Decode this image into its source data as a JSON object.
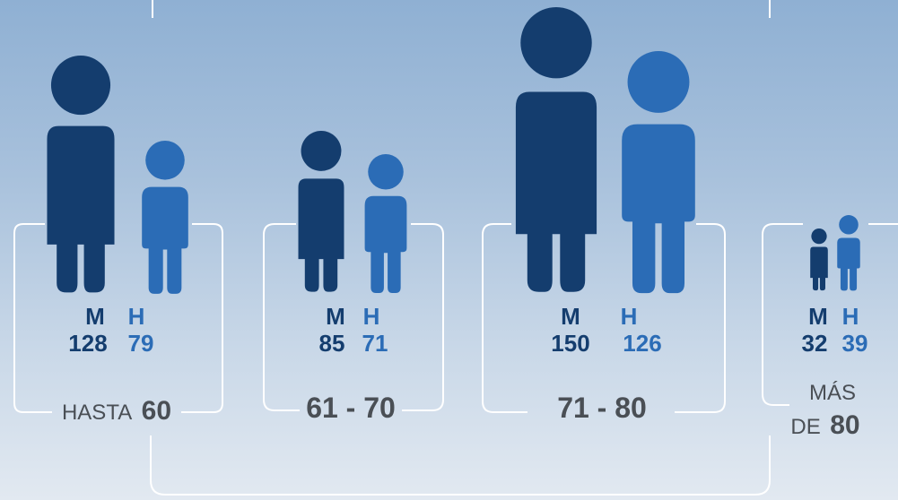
{
  "colors": {
    "women": "#143d6e",
    "men": "#2b6cb6",
    "frame": "#ffffff",
    "range_text": "#4a4f55"
  },
  "chart_data": {
    "type": "pictogram",
    "series_labels": {
      "women": "M",
      "men": "H"
    },
    "groups": [
      {
        "range_prefix": "HASTA",
        "range_value": "60",
        "women": 128,
        "men": 79
      },
      {
        "range_prefix": "",
        "range_value": "61 - 70",
        "women": 85,
        "men": 71
      },
      {
        "range_prefix": "",
        "range_value": "71 - 80",
        "women": 150,
        "men": 126
      },
      {
        "range_prefix": "MÁS DE",
        "range_value": "80",
        "women": 32,
        "men": 39
      }
    ]
  }
}
